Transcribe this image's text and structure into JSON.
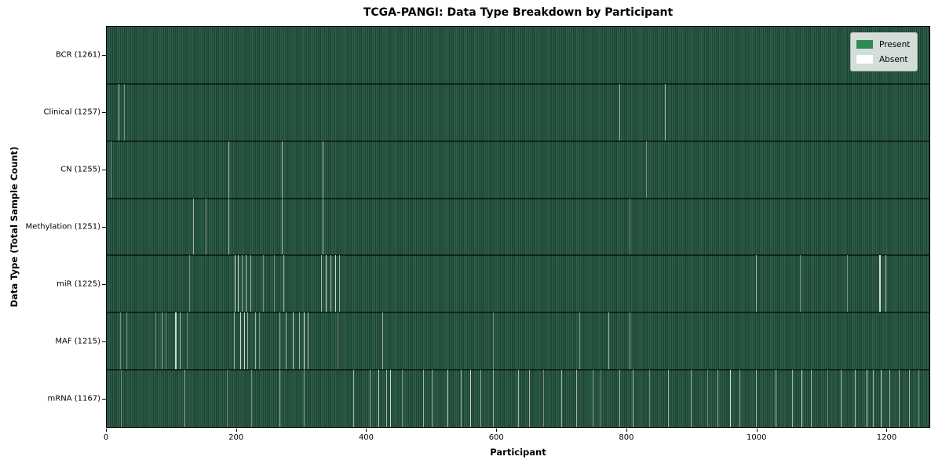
{
  "chart_data": {
    "type": "heatmap",
    "title": "TCGA-PANGI: Data Type Breakdown by Participant",
    "xlabel": "Participant",
    "ylabel": "Data Type (Total Sample Count)",
    "x_ticks": [
      0,
      200,
      400,
      600,
      800,
      1000,
      1200
    ],
    "x_max": 1267,
    "legend_position": "upper right",
    "legend": [
      {
        "label": "Present",
        "color": "#2e8b57"
      },
      {
        "label": "Absent",
        "color": "#ffffff"
      }
    ],
    "colors": {
      "bar_green": "#2e8b57",
      "row_texture_light": "#2e6049",
      "row_texture_dark": "#1d4434",
      "stripe_intensities": [
        "#7e9086",
        "#a7b5aa",
        "#d3dbd4"
      ]
    },
    "note": "Each row shows presence (green) / absence (thin light stripes) of a data type across ~1267 participants. Stripe entries are [participant_index, intensity(0 faint - 2 bright), optional_width_in_participants].",
    "rows": [
      {
        "data_type": "BCR",
        "total": 1261,
        "label": "BCR (1261)",
        "absent": []
      },
      {
        "data_type": "Clinical",
        "total": 1257,
        "label": "Clinical (1257)",
        "absent": [
          [
            18,
            1
          ],
          [
            26,
            0
          ],
          [
            790,
            1
          ],
          [
            859,
            1
          ]
        ]
      },
      {
        "data_type": "CN",
        "total": 1255,
        "label": "CN (1255)",
        "absent": [
          [
            6,
            0
          ],
          [
            187,
            1
          ],
          [
            270,
            1
          ],
          [
            332,
            1
          ],
          [
            830,
            0
          ]
        ]
      },
      {
        "data_type": "Methylation",
        "total": 1251,
        "label": "Methylation (1251)",
        "absent": [
          [
            133,
            1
          ],
          [
            152,
            0
          ],
          [
            187,
            1
          ],
          [
            270,
            1
          ],
          [
            332,
            1
          ],
          [
            805,
            0
          ]
        ]
      },
      {
        "data_type": "miR",
        "total": 1225,
        "label": "miR (1225)",
        "absent": [
          [
            127,
            0
          ],
          [
            197,
            2
          ],
          [
            202,
            2
          ],
          [
            208,
            1
          ],
          [
            214,
            2
          ],
          [
            221,
            1
          ],
          [
            240,
            0
          ],
          [
            258,
            0
          ],
          [
            272,
            1
          ],
          [
            330,
            1
          ],
          [
            337,
            2
          ],
          [
            344,
            1
          ],
          [
            352,
            2
          ],
          [
            358,
            1
          ],
          [
            1000,
            1
          ],
          [
            1068,
            0
          ],
          [
            1140,
            0
          ],
          [
            1190,
            2,
            2
          ],
          [
            1199,
            1
          ]
        ]
      },
      {
        "data_type": "MAF",
        "total": 1215,
        "label": "MAF (1215)",
        "absent": [
          [
            20,
            0
          ],
          [
            30,
            0
          ],
          [
            75,
            0
          ],
          [
            85,
            1
          ],
          [
            91,
            0
          ],
          [
            105,
            2,
            2
          ],
          [
            112,
            1
          ],
          [
            123,
            0
          ],
          [
            196,
            1
          ],
          [
            205,
            2
          ],
          [
            211,
            2
          ],
          [
            217,
            1
          ],
          [
            228,
            1
          ],
          [
            235,
            0
          ],
          [
            266,
            1
          ],
          [
            276,
            1
          ],
          [
            286,
            2
          ],
          [
            296,
            1
          ],
          [
            304,
            2
          ],
          [
            310,
            1
          ],
          [
            355,
            0
          ],
          [
            424,
            1
          ],
          [
            595,
            0
          ],
          [
            728,
            0
          ],
          [
            773,
            1
          ],
          [
            805,
            1
          ]
        ]
      },
      {
        "data_type": "mRNA",
        "total": 1167,
        "label": "mRNA (1167)",
        "absent": [
          [
            22,
            0
          ],
          [
            120,
            1
          ],
          [
            185,
            0
          ],
          [
            222,
            0
          ],
          [
            266,
            1
          ],
          [
            304,
            0
          ],
          [
            380,
            1
          ],
          [
            405,
            1
          ],
          [
            418,
            2
          ],
          [
            430,
            1
          ],
          [
            437,
            2
          ],
          [
            455,
            0
          ],
          [
            487,
            1
          ],
          [
            500,
            1
          ],
          [
            525,
            2
          ],
          [
            545,
            1
          ],
          [
            560,
            2
          ],
          [
            575,
            1
          ],
          [
            595,
            1
          ],
          [
            633,
            1
          ],
          [
            650,
            1
          ],
          [
            672,
            0
          ],
          [
            700,
            1
          ],
          [
            723,
            1
          ],
          [
            748,
            1
          ],
          [
            760,
            0
          ],
          [
            790,
            1
          ],
          [
            810,
            1
          ],
          [
            835,
            0
          ],
          [
            865,
            1
          ],
          [
            900,
            1
          ],
          [
            925,
            0
          ],
          [
            940,
            1
          ],
          [
            960,
            2
          ],
          [
            975,
            1
          ],
          [
            1000,
            1
          ],
          [
            1030,
            1
          ],
          [
            1055,
            1
          ],
          [
            1070,
            2
          ],
          [
            1085,
            1
          ],
          [
            1110,
            0
          ],
          [
            1130,
            1
          ],
          [
            1152,
            1
          ],
          [
            1170,
            2
          ],
          [
            1180,
            1
          ],
          [
            1192,
            2
          ],
          [
            1205,
            1
          ],
          [
            1220,
            1
          ],
          [
            1235,
            1
          ],
          [
            1250,
            0
          ]
        ]
      }
    ]
  }
}
